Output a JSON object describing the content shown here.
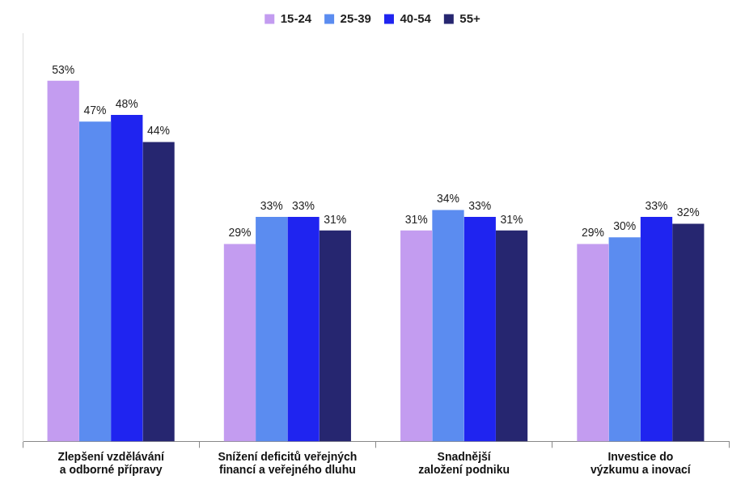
{
  "chart_data": {
    "type": "bar",
    "categories": [
      "Zlepšení vzdělávání a odborné přípravy",
      "Snížení deficitů veřejných financí a veřejného dluhu",
      "Snadnější založení podniku",
      "Investice do výzkumu a inovací"
    ],
    "series": [
      {
        "name": "15-24",
        "color": "#c39cf0",
        "values": [
          53,
          29,
          31,
          29
        ],
        "value_labels": [
          "53%",
          "29%",
          "31%",
          "29%"
        ]
      },
      {
        "name": "25-39",
        "color": "#5b8cf0",
        "values": [
          47,
          33,
          34,
          30
        ],
        "value_labels": [
          "47%",
          "33%",
          "34%",
          "30%"
        ]
      },
      {
        "name": "40-54",
        "color": "#1f24f0",
        "values": [
          48,
          33,
          33,
          33
        ],
        "value_labels": [
          "48%",
          "33%",
          "33%",
          "33%"
        ]
      },
      {
        "name": "55+",
        "color": "#262670",
        "values": [
          44,
          31,
          31,
          32
        ],
        "value_labels": [
          "44%",
          "31%",
          "31%",
          "32%"
        ]
      }
    ],
    "ylim": [
      0,
      60
    ],
    "grid": false,
    "legend": "top",
    "data_labels": true,
    "tick_labels": "x"
  }
}
